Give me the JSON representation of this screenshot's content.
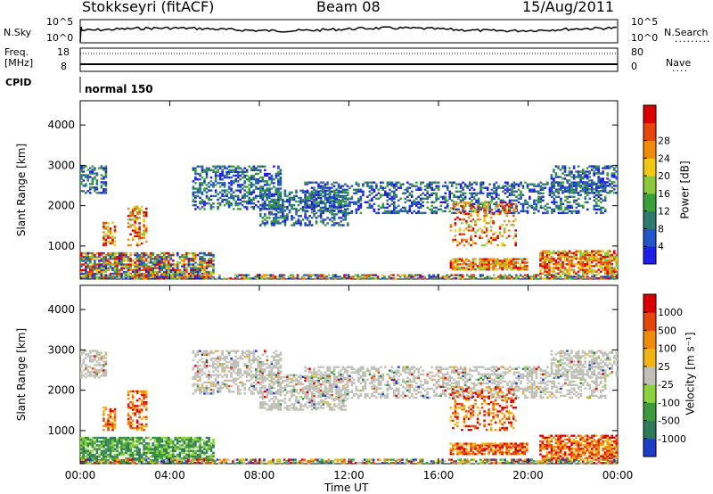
{
  "header": {
    "station": "Stokkseyri (fitACF)",
    "beam": "Beam 08",
    "date": "15/Aug/2011"
  },
  "top_panels": {
    "nsky_label": "N.Sky",
    "nsearch_label": "N.Search",
    "nsky_ticks": [
      "10^5",
      "10^0"
    ],
    "nsky_right_ticks": [
      "10^5",
      "10^0"
    ],
    "freq_label_1": "Freq.",
    "freq_label_2": "[MHz]",
    "freq_ticks": [
      "18",
      "8"
    ],
    "nave_label": "Nave",
    "nave_ticks": [
      "80",
      "0"
    ],
    "cpid_label": "CPID",
    "cpid_value": "normal 150"
  },
  "chart_data": [
    {
      "type": "heatmap",
      "title": "",
      "ylabel": "Slant Range [km]",
      "xlabel": "",
      "ylim": [
        180,
        4600
      ],
      "yticks": [
        "1000",
        "2000",
        "3000",
        "4000"
      ],
      "colorbar_label": "Power [dB]",
      "colorbar_ticks": [
        "4",
        "8",
        "12",
        "16",
        "20",
        "24",
        "28"
      ],
      "colorbar_colors": [
        "#1e1ee6",
        "#2255c8",
        "#2f7a6e",
        "#3aa03a",
        "#8cc83c",
        "#f0c814",
        "#f08c0a",
        "#e6460a",
        "#dc0000"
      ]
    },
    {
      "type": "heatmap",
      "title": "",
      "ylabel": "Slant Range [km]",
      "xlabel": "Time UT",
      "ylim": [
        180,
        4600
      ],
      "yticks": [
        "1000",
        "2000",
        "3000",
        "4000"
      ],
      "xticks": [
        "00:00",
        "04:00",
        "08:00",
        "12:00",
        "16:00",
        "20:00",
        "00:00"
      ],
      "colorbar_label": "Velocity [m s⁻¹]",
      "colorbar_ticks": [
        "1000",
        "500",
        "100",
        "25",
        "-25",
        "-100",
        "-500",
        "-1000"
      ],
      "colorbar_colors": [
        "#1e3cc8",
        "#2e7a5a",
        "#3c9a3c",
        "#8cd23c",
        "#c0c0b8",
        "#f0b414",
        "#f08c0a",
        "#e6460a",
        "#dc0000"
      ]
    }
  ]
}
